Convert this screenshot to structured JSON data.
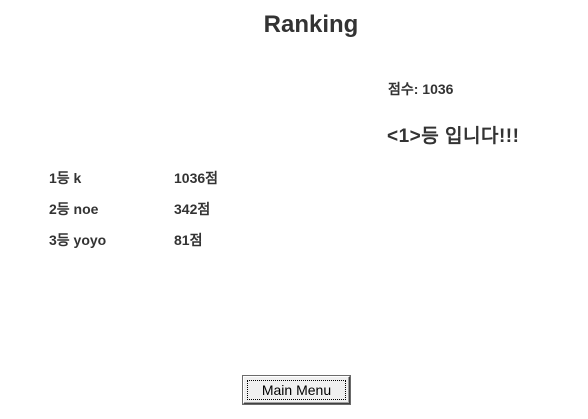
{
  "header": {
    "title": "Ranking"
  },
  "result": {
    "score_text": "점수: 1036",
    "rank_text": "<1>등 입니다!!!"
  },
  "ranking": [
    {
      "label": "1등 k",
      "points": "1036점"
    },
    {
      "label": "2등 noe",
      "points": "342점"
    },
    {
      "label": "3등 yoyo",
      "points": "81점"
    }
  ],
  "footer": {
    "main_menu_label": "Main Menu"
  }
}
